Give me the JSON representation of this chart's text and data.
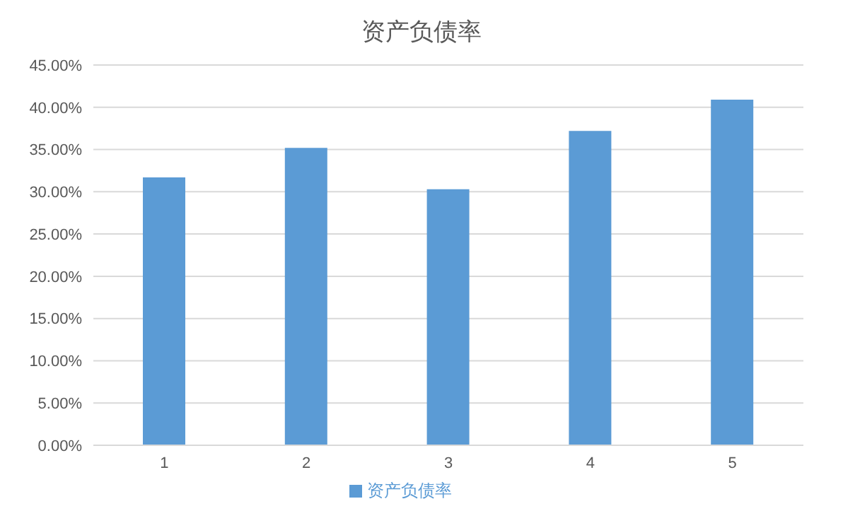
{
  "chart_data": {
    "type": "bar",
    "title": "资产负债率",
    "categories": [
      "1",
      "2",
      "3",
      "4",
      "5"
    ],
    "series": [
      {
        "name": "资产负债率",
        "color": "#5b9bd5",
        "values": [
          31.7,
          35.2,
          30.3,
          37.2,
          40.9
        ]
      }
    ],
    "ylim": [
      0,
      45
    ],
    "yticks": [
      {
        "value": 0,
        "label": "0.00%"
      },
      {
        "value": 5,
        "label": "5.00%"
      },
      {
        "value": 10,
        "label": "10.00%"
      },
      {
        "value": 15,
        "label": "15.00%"
      },
      {
        "value": 20,
        "label": "20.00%"
      },
      {
        "value": 25,
        "label": "25.00%"
      },
      {
        "value": 30,
        "label": "30.00%"
      },
      {
        "value": 35,
        "label": "35.00%"
      },
      {
        "value": 40,
        "label": "40.00%"
      },
      {
        "value": 45,
        "label": "45.00%"
      }
    ],
    "grid": "y",
    "legend": "bottom"
  }
}
